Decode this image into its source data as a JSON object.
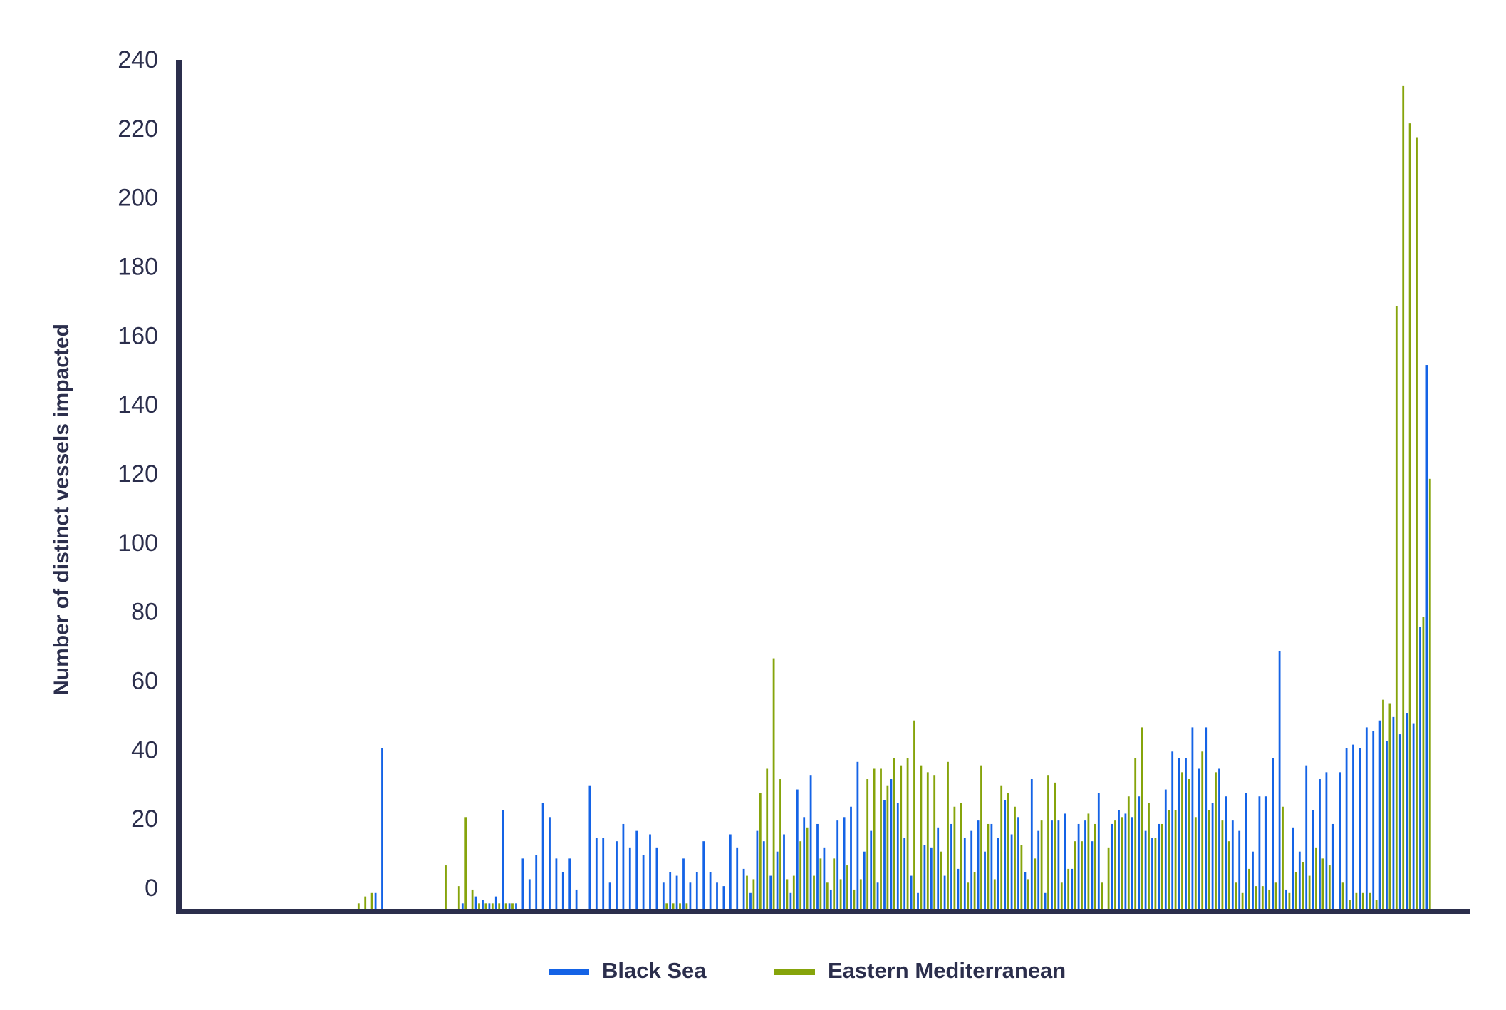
{
  "chart_data": {
    "type": "bar",
    "y_label": "Number of distinct vessels impacted",
    "ylim": [
      -6,
      240
    ],
    "yticks": [
      0,
      20,
      40,
      60,
      80,
      100,
      120,
      140,
      160,
      180,
      200,
      220,
      240
    ],
    "grid": false,
    "legend": "bottom",
    "categories": [
      null,
      null,
      null,
      null,
      null,
      null,
      null,
      null,
      null,
      null,
      null,
      null,
      null,
      null,
      null,
      null,
      null,
      null,
      null,
      null,
      null,
      null,
      null,
      null,
      null,
      null,
      null,
      null,
      null,
      null,
      null,
      null,
      null,
      null,
      null,
      null,
      null,
      null,
      null,
      null,
      null,
      null,
      null,
      null,
      null,
      null,
      null,
      null,
      null,
      null,
      null,
      null,
      null,
      null,
      null,
      null,
      null,
      null,
      null,
      null,
      null,
      null,
      null,
      null,
      null,
      null,
      null,
      null,
      null,
      null,
      null,
      null,
      null,
      null,
      null,
      null,
      null,
      null,
      null,
      null,
      null,
      null,
      null,
      null,
      null,
      null,
      null,
      null,
      null,
      null,
      null,
      null,
      null,
      null,
      null,
      null,
      null,
      null,
      null,
      null,
      null,
      null,
      null,
      null,
      null,
      null,
      null,
      null,
      null,
      null,
      null,
      null,
      null,
      null,
      null,
      null,
      null,
      null,
      null,
      null,
      null,
      null,
      null,
      null,
      null,
      null,
      null,
      null,
      null,
      null,
      null,
      null,
      null,
      null,
      null,
      null,
      null,
      null,
      null,
      null,
      null,
      null,
      null,
      null,
      null,
      null,
      null,
      null,
      null,
      null,
      null,
      null,
      null,
      null,
      null,
      null,
      null,
      null,
      null,
      null,
      null,
      null,
      null,
      null,
      null,
      null,
      null,
      null,
      null,
      null,
      null,
      null,
      null,
      null,
      null,
      null,
      null,
      null,
      null,
      null,
      null,
      null,
      null,
      null,
      null,
      null,
      null
    ],
    "series": [
      {
        "name": "Black Sea",
        "color": "#1463e6",
        "values": [
          null,
          null,
          null,
          null,
          null,
          null,
          null,
          null,
          null,
          null,
          null,
          null,
          null,
          null,
          null,
          null,
          null,
          null,
          null,
          null,
          null,
          null,
          null,
          null,
          null,
          null,
          null,
          null,
          null,
          -1,
          41,
          null,
          null,
          null,
          null,
          null,
          null,
          null,
          null,
          null,
          null,
          null,
          -4,
          null,
          -2,
          -3,
          -4,
          -2,
          23,
          -4,
          -4,
          9,
          3,
          10,
          25,
          21,
          9,
          5,
          9,
          0,
          null,
          30,
          15,
          15,
          2,
          14,
          19,
          12,
          17,
          10,
          16,
          12,
          2,
          5,
          4,
          9,
          2,
          5,
          14,
          5,
          2,
          1,
          16,
          12,
          6,
          -1,
          17,
          14,
          4,
          11,
          16,
          -1,
          29,
          21,
          33,
          19,
          12,
          0,
          20,
          21,
          24,
          37,
          11,
          17,
          2,
          26,
          32,
          25,
          15,
          4,
          -1,
          13,
          12,
          18,
          4,
          19,
          6,
          15,
          17,
          20,
          11,
          19,
          15,
          26,
          16,
          21,
          5,
          32,
          17,
          -1,
          20,
          20,
          22,
          6,
          19,
          20,
          14,
          28,
          null,
          19,
          23,
          22,
          21,
          27,
          17,
          15,
          19,
          29,
          40,
          38,
          38,
          47,
          35,
          47,
          25,
          35,
          27,
          20,
          17,
          28,
          11,
          27,
          27,
          38,
          69,
          0,
          18,
          11,
          36,
          23,
          32,
          34,
          19,
          34,
          41,
          42,
          41,
          47,
          46,
          49,
          43,
          50,
          45,
          51,
          48,
          76,
          152
        ]
      },
      {
        "name": "Eastern Mediterranean",
        "color": "#86a40b",
        "values": [
          null,
          null,
          null,
          null,
          null,
          null,
          null,
          null,
          null,
          null,
          null,
          null,
          null,
          null,
          null,
          null,
          null,
          null,
          null,
          null,
          null,
          null,
          null,
          null,
          null,
          null,
          -4,
          -2,
          -1,
          null,
          null,
          null,
          null,
          null,
          null,
          null,
          null,
          null,
          null,
          7,
          null,
          1,
          21,
          0,
          -4,
          -4,
          -4,
          -4,
          -4,
          -4,
          null,
          null,
          null,
          null,
          null,
          null,
          null,
          null,
          null,
          null,
          null,
          null,
          null,
          null,
          null,
          null,
          null,
          null,
          null,
          null,
          null,
          null,
          -4,
          -4,
          -4,
          -4,
          null,
          null,
          null,
          null,
          null,
          null,
          null,
          null,
          4,
          3,
          28,
          35,
          67,
          32,
          3,
          4,
          14,
          18,
          4,
          9,
          2,
          9,
          3,
          7,
          0,
          3,
          32,
          35,
          35,
          30,
          38,
          36,
          38,
          49,
          36,
          34,
          33,
          11,
          37,
          24,
          25,
          2,
          5,
          36,
          19,
          3,
          30,
          28,
          24,
          13,
          3,
          9,
          20,
          33,
          31,
          2,
          6,
          14,
          14,
          22,
          19,
          2,
          12,
          20,
          21,
          27,
          38,
          47,
          25,
          15,
          19,
          23,
          23,
          34,
          32,
          21,
          40,
          23,
          34,
          20,
          14,
          2,
          -1,
          6,
          1,
          1,
          0,
          2,
          24,
          -1,
          5,
          8,
          4,
          12,
          9,
          7,
          null,
          2,
          -3,
          -1,
          -1,
          -1,
          -3,
          55,
          54,
          169,
          233,
          222,
          218,
          79,
          119
        ]
      }
    ]
  }
}
